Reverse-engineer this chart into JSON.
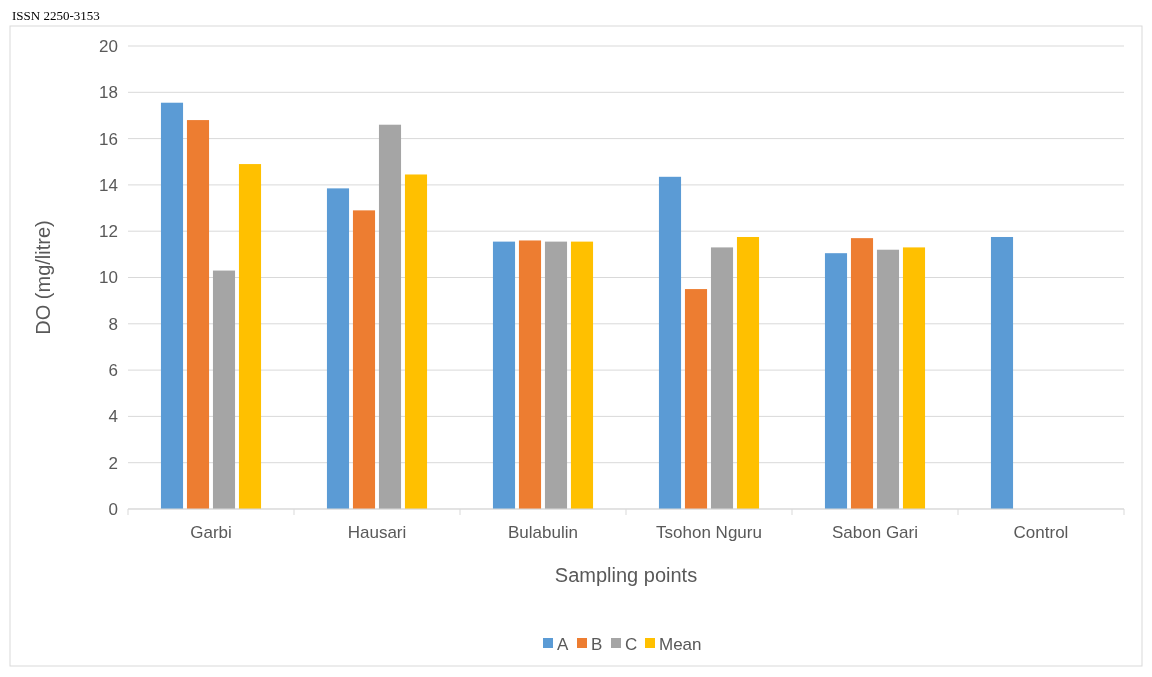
{
  "chart_data": {
    "type": "bar",
    "xlabel": "Sampling points",
    "ylabel": "DO (mg/litre)",
    "categories": [
      "Garbi",
      "Hausari",
      "Bulabulin",
      "Tsohon Nguru",
      "Sabon Gari",
      "Control"
    ],
    "series": [
      {
        "name": "A",
        "color": "#5b9bd5",
        "values": [
          17.55,
          13.85,
          11.55,
          14.35,
          11.05,
          11.75
        ]
      },
      {
        "name": "B",
        "color": "#ed7d31",
        "values": [
          16.8,
          12.9,
          11.6,
          9.5,
          11.7,
          null
        ]
      },
      {
        "name": "C",
        "color": "#a5a5a5",
        "values": [
          10.3,
          16.6,
          11.55,
          11.3,
          11.2,
          null
        ]
      },
      {
        "name": "Mean",
        "color": "#ffc000",
        "values": [
          14.9,
          14.45,
          11.55,
          11.75,
          11.3,
          null
        ]
      }
    ],
    "ylim": [
      0,
      20
    ],
    "yticks": [
      0,
      2,
      4,
      6,
      8,
      10,
      12,
      14,
      16,
      18,
      20
    ],
    "grid": "y",
    "legend": "bottom",
    "annotations": [
      "ISSN 2250-3153"
    ]
  }
}
